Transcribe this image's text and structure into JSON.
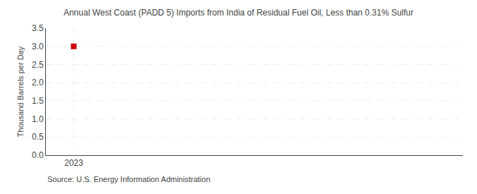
{
  "chart_data": {
    "type": "scatter",
    "title": "Annual West Coast (PADD 5) Imports from India of Residual Fuel Oil, Less than 0.31% Sulfur",
    "ylabel": "Thousand Barrels per Day",
    "annotations": [
      "Source: U.S. Energy Information Administration"
    ],
    "x": [
      2023
    ],
    "values": [
      3.0
    ],
    "color": "#cc0000",
    "marker": "square",
    "xlim": [
      2022.5,
      2030.0
    ],
    "ylim": [
      0,
      3.5
    ],
    "xticks": [
      2023
    ],
    "yticks": [
      {
        "value": 0.0,
        "label": "0.0"
      },
      0.5,
      {
        "value": 1.0,
        "label": "1.0"
      },
      1.5,
      {
        "value": 2.0,
        "label": "2.0"
      },
      2.5,
      {
        "value": 3.0,
        "label": "3.0"
      },
      3.5
    ],
    "grid": true
  }
}
